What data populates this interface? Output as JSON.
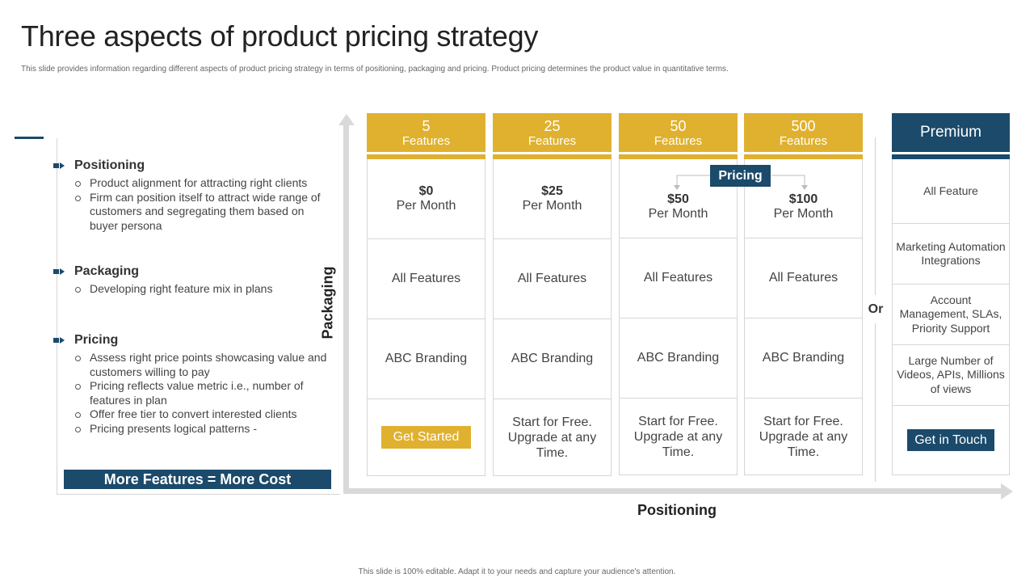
{
  "header": {
    "title": "Three aspects of product pricing strategy",
    "subtitle": "This slide provides information regarding different aspects of product pricing strategy in terms of positioning,  packaging and pricing. Product pricing determines the product value in quantitative terms."
  },
  "sections": [
    {
      "heading": "Positioning",
      "bullets": [
        "Product alignment for attracting right clients",
        "Firm can position itself to attract wide range of customers and segregating them based on buyer persona"
      ]
    },
    {
      "heading": "Packaging",
      "bullets": [
        "Developing right feature mix in plans"
      ]
    },
    {
      "heading": "Pricing",
      "bullets": [
        "Assess right price points showcasing value and customers willing to pay",
        "Pricing reflects value metric i.e., number of features in plan",
        "Offer free tier to convert interested clients",
        "Pricing presents logical patterns -"
      ]
    }
  ],
  "cost_banner": "More Features = More Cost",
  "axes": {
    "y_label": "Packaging",
    "x_label": "Positioning"
  },
  "pricing_tag": "Pricing",
  "plans": [
    {
      "count": "5",
      "features_label": "Features",
      "price": "$0",
      "per": "Per Month",
      "features": "All Features",
      "branding": "ABC Branding",
      "cta": "Get Started",
      "cta_text": ""
    },
    {
      "count": "25",
      "features_label": "Features",
      "price": "$25",
      "per": "Per Month",
      "features": "All Features",
      "branding": "ABC Branding",
      "cta": "",
      "cta_text": "Start for Free. Upgrade at any Time."
    },
    {
      "count": "50",
      "features_label": "Features",
      "price": "$50",
      "per": "Per Month",
      "features": "All Features",
      "branding": "ABC Branding",
      "cta": "",
      "cta_text": "Start for Free. Upgrade at any Time."
    },
    {
      "count": "500",
      "features_label": "Features",
      "price": "$100",
      "per": "Per Month",
      "features": "All Features",
      "branding": "ABC Branding",
      "cta": "",
      "cta_text": "Start for Free. Upgrade at any Time."
    }
  ],
  "or_label": "Or",
  "premium": {
    "title": "Premium",
    "rows": [
      "All Feature",
      "Marketing Automation Integrations",
      "Account Management, SLAs, Priority Support",
      "Large Number of Videos, APIs, Millions of views"
    ],
    "cta": "Get in Touch"
  },
  "footer": "This slide is 100% editable. Adapt it to your needs and capture your audience's attention.",
  "colors": {
    "gold": "#e0b12f",
    "navy": "#1b4a6b",
    "axis": "#d9d9d9"
  }
}
